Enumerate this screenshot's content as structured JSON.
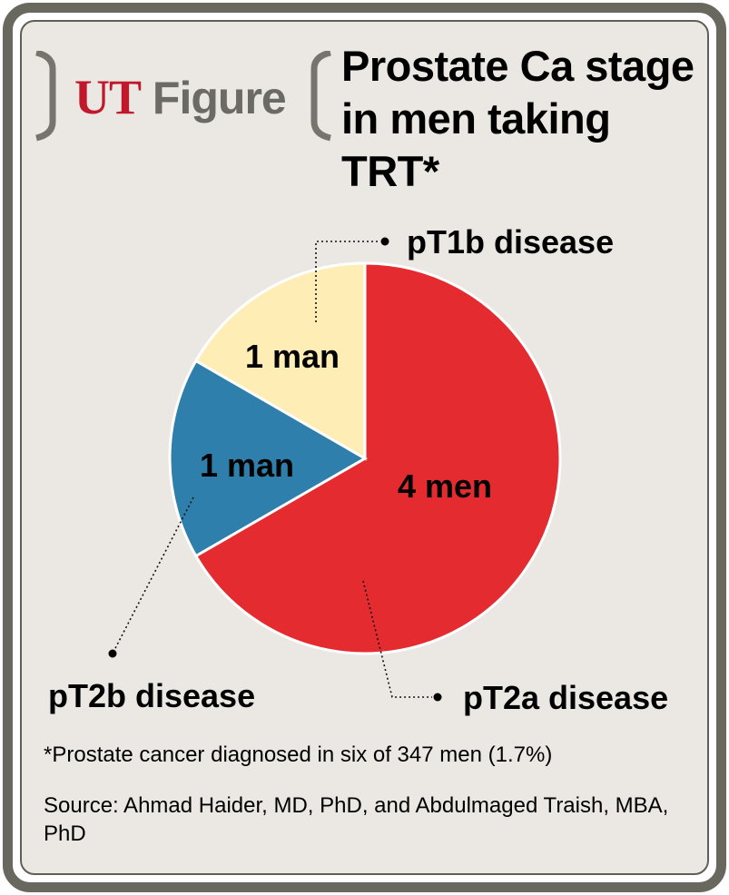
{
  "brand": {
    "ut": "UT",
    "figure": "Figure"
  },
  "title_lines": [
    "Prostate Ca stage",
    "in men taking",
    "TRT*"
  ],
  "chart_data": {
    "type": "pie",
    "slices": [
      {
        "label": "pT2a disease",
        "value": 4,
        "value_label": "4 men",
        "color": "#e32b30"
      },
      {
        "label": "pT2b disease",
        "value": 1,
        "value_label": "1 man",
        "color": "#2f7fad"
      },
      {
        "label": "pT1b disease",
        "value": 1,
        "value_label": "1 man",
        "color": "#feedb5"
      }
    ]
  },
  "footnote": "*Prostate cancer diagnosed in six of 347 men (1.7%)",
  "source": "Source: Ahmad Haider, MD, PhD, and Abdulmaged Traish, MBA, PhD"
}
